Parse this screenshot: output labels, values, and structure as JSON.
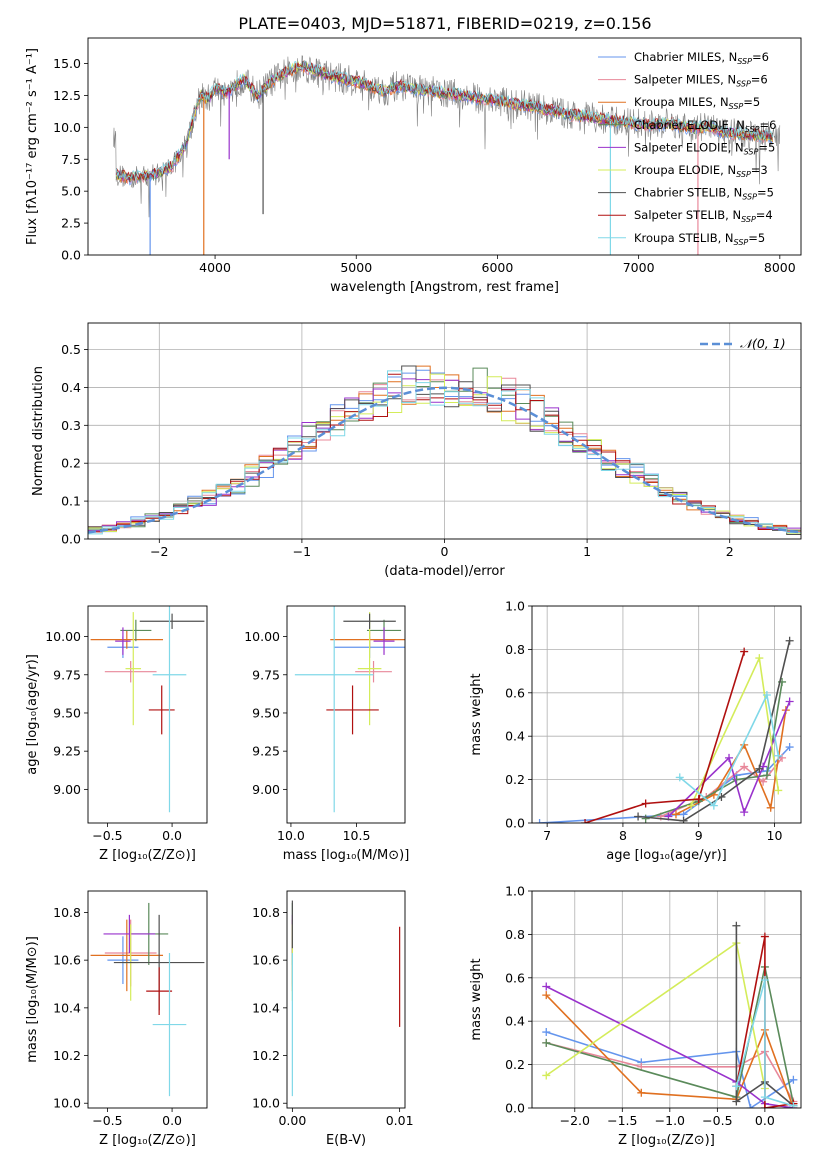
{
  "figure": {
    "title": "PLATE=0403, MJD=51871, FIBERID=0219, z=0.156"
  },
  "series_styles": [
    {
      "name": "Chabrier MILES",
      "nssp": "6",
      "color": "#6495ed"
    },
    {
      "name": "Salpeter MILES",
      "nssp": "6",
      "color": "#e8889a"
    },
    {
      "name": "Kroupa MILES",
      "nssp": "5",
      "color": "#e07020"
    },
    {
      "name": "Chabrier ELODIE",
      "nssp": "6",
      "color": "#5a8a5a"
    },
    {
      "name": "Salpeter ELODIE",
      "nssp": "5",
      "color": "#9932cc"
    },
    {
      "name": "Kroupa ELODIE",
      "nssp": "3",
      "color": "#d4ec5a"
    },
    {
      "name": "Chabrier STELIB",
      "nssp": "5",
      "color": "#505050"
    },
    {
      "name": "Salpeter STELIB",
      "nssp": "4",
      "color": "#b01010"
    },
    {
      "name": "Kroupa STELIB",
      "nssp": "5",
      "color": "#80d8e8"
    }
  ],
  "chart_data": [
    {
      "id": "spectrum",
      "type": "line",
      "xlabel": "wavelength [Angstrom, rest frame]",
      "ylabel": "Flux [fλ10⁻¹⁷ erg cm⁻² s⁻¹ A⁻¹]",
      "xlim": [
        3100,
        8150
      ],
      "ylim": [
        0,
        17
      ],
      "xticks": [
        4000,
        5000,
        6000,
        7000,
        8000
      ],
      "yticks": [
        0.0,
        2.5,
        5.0,
        7.5,
        10.0,
        12.5,
        15.0
      ],
      "legend": "top-right",
      "data_series": {
        "name": "data",
        "color": "#808080"
      },
      "continuum_points": [
        [
          3300,
          6.3
        ],
        [
          3400,
          6.0
        ],
        [
          3500,
          6.2
        ],
        [
          3600,
          6.4
        ],
        [
          3700,
          7.0
        ],
        [
          3800,
          8.8
        ],
        [
          3850,
          11.0
        ],
        [
          3900,
          12.5
        ],
        [
          3950,
          12.2
        ],
        [
          4000,
          13.0
        ],
        [
          4100,
          12.8
        ],
        [
          4200,
          13.8
        ],
        [
          4300,
          12.5
        ],
        [
          4400,
          13.6
        ],
        [
          4500,
          14.3
        ],
        [
          4600,
          14.8
        ],
        [
          4700,
          14.5
        ],
        [
          4800,
          14.1
        ],
        [
          4900,
          13.8
        ],
        [
          5000,
          13.6
        ],
        [
          5100,
          13.2
        ],
        [
          5200,
          12.8
        ],
        [
          5300,
          13.3
        ],
        [
          5400,
          13.0
        ],
        [
          5500,
          12.9
        ],
        [
          5600,
          12.7
        ],
        [
          5700,
          12.6
        ],
        [
          5800,
          12.4
        ],
        [
          5900,
          12.2
        ],
        [
          6000,
          12.1
        ],
        [
          6100,
          11.9
        ],
        [
          6200,
          11.7
        ],
        [
          6300,
          11.5
        ],
        [
          6400,
          11.3
        ],
        [
          6500,
          11.0
        ],
        [
          6600,
          10.9
        ],
        [
          6700,
          10.7
        ],
        [
          6800,
          10.5
        ],
        [
          6900,
          10.4
        ],
        [
          7000,
          10.3
        ],
        [
          7100,
          10.2
        ],
        [
          7200,
          10.3
        ],
        [
          7300,
          10.1
        ],
        [
          7400,
          9.9
        ],
        [
          7500,
          10.1
        ],
        [
          7600,
          9.6
        ],
        [
          7700,
          9.5
        ],
        [
          7800,
          9.4
        ],
        [
          7900,
          9.3
        ],
        [
          8000,
          9.2
        ]
      ],
      "absorption_features": [
        {
          "x": 3540,
          "y": 0.0
        },
        {
          "x": 3920,
          "y": 0.0
        },
        {
          "x": 4100,
          "y": 7.5
        },
        {
          "x": 4340,
          "y": 3.2
        },
        {
          "x": 6800,
          "y": 0.0
        },
        {
          "x": 7420,
          "y": 0.0
        }
      ]
    },
    {
      "id": "residuals",
      "type": "step",
      "xlabel": "(data-model)/error",
      "ylabel": "Normed distribution",
      "xlim": [
        -2.5,
        2.5
      ],
      "ylim": [
        0,
        0.57
      ],
      "xticks": [
        -2,
        -1,
        0,
        1,
        2
      ],
      "yticks": [
        0.0,
        0.1,
        0.2,
        0.3,
        0.4,
        0.5
      ],
      "grid": true,
      "legend": "top-right",
      "reference_curve": {
        "name": "𝒩(0, 1)",
        "color": "#5b8fd6",
        "mean": 0,
        "sigma": 1
      },
      "bin_edges_start": -2.5,
      "bin_width": 0.1
    },
    {
      "id": "age_vs_Z",
      "type": "errorbar",
      "xlabel": "Z [log₁₀(Z/Z⊙)]",
      "ylabel": "age  [log₁₀(age/yr)]",
      "xlim": [
        -0.65,
        0.27
      ],
      "ylim": [
        8.78,
        10.2
      ],
      "xticks": [
        -0.5,
        0.0
      ],
      "yticks": [
        9.0,
        9.25,
        9.5,
        9.75,
        10.0
      ],
      "points": [
        {
          "x": -0.38,
          "xerr": 0.12,
          "y": 9.93,
          "yerr": 0.07
        },
        {
          "x": -0.32,
          "xerr": 0.2,
          "y": 9.77,
          "yerr": 0.07
        },
        {
          "x": -0.35,
          "xerr": 0.28,
          "y": 9.98,
          "yerr": 0.06
        },
        {
          "x": -0.28,
          "xerr": 0.12,
          "y": 10.04,
          "yerr": 0.07
        },
        {
          "x": -0.38,
          "xerr": 0.06,
          "y": 9.97,
          "yerr": 0.09
        },
        {
          "x": -0.3,
          "xerr": 0.06,
          "y": 9.79,
          "yerr": 0.37
        },
        {
          "x": 0.0,
          "xerr": 0.25,
          "y": 10.1,
          "yerr": 0.05
        },
        {
          "x": -0.08,
          "xerr": 0.1,
          "y": 9.52,
          "yerr": 0.16
        },
        {
          "x": -0.02,
          "xerr": 0.13,
          "y": 9.75,
          "yerr": 0.9
        }
      ]
    },
    {
      "id": "age_vs_mass",
      "type": "errorbar",
      "xlabel": "mass [log₁₀(M/M⊙)]",
      "ylabel": "",
      "xlim": [
        9.97,
        10.87
      ],
      "ylim": [
        8.78,
        10.2
      ],
      "xticks": [
        10.0,
        10.5
      ],
      "yticks": [
        9.0,
        9.25,
        9.5,
        9.75,
        10.0
      ],
      "points": [
        {
          "x": 10.6,
          "xerr": 0.27,
          "y": 9.93,
          "yerr": 0.07
        },
        {
          "x": 10.63,
          "xerr": 0.14,
          "y": 9.77,
          "yerr": 0.07
        },
        {
          "x": 10.6,
          "xerr": 0.3,
          "y": 9.98,
          "yerr": 0.06
        },
        {
          "x": 10.71,
          "xerr": 0.13,
          "y": 10.04,
          "yerr": 0.07
        },
        {
          "x": 10.71,
          "xerr": 0.08,
          "y": 9.97,
          "yerr": 0.09
        },
        {
          "x": 10.6,
          "xerr": 0.09,
          "y": 9.79,
          "yerr": 0.37
        },
        {
          "x": 10.6,
          "xerr": 0.2,
          "y": 10.1,
          "yerr": 0.05
        },
        {
          "x": 10.47,
          "xerr": 0.2,
          "y": 9.52,
          "yerr": 0.16
        },
        {
          "x": 10.33,
          "xerr": 0.3,
          "y": 9.75,
          "yerr": 0.9
        }
      ]
    },
    {
      "id": "weight_vs_age",
      "type": "line",
      "xlabel": "age  [log₁₀(age/yr)]",
      "ylabel": "mass weight",
      "xlim": [
        6.8,
        10.35
      ],
      "ylim": [
        0,
        1.0
      ],
      "xticks": [
        7,
        8,
        9,
        10
      ],
      "yticks": [
        0.0,
        0.2,
        0.4,
        0.6,
        0.8,
        1.0
      ],
      "grid": true,
      "series": [
        {
          "points": [
            [
              6.9,
              0.0
            ],
            [
              8.8,
              0.04
            ],
            [
              9.5,
              0.22
            ],
            [
              9.9,
              0.24
            ],
            [
              10.2,
              0.35
            ]
          ]
        },
        {
          "points": [
            [
              8.5,
              0.03
            ],
            [
              9.1,
              0.12
            ],
            [
              9.6,
              0.26
            ],
            [
              9.85,
              0.19
            ],
            [
              10.1,
              0.3
            ]
          ]
        },
        {
          "points": [
            [
              8.7,
              0.04
            ],
            [
              9.2,
              0.13
            ],
            [
              9.6,
              0.36
            ],
            [
              9.95,
              0.07
            ],
            [
              10.15,
              0.52
            ]
          ]
        },
        {
          "points": [
            [
              8.3,
              0.02
            ],
            [
              9.0,
              0.1
            ],
            [
              9.5,
              0.2
            ],
            [
              9.9,
              0.22
            ],
            [
              10.1,
              0.65
            ]
          ]
        },
        {
          "points": [
            [
              8.6,
              0.03
            ],
            [
              9.4,
              0.3
            ],
            [
              9.6,
              0.05
            ],
            [
              9.85,
              0.26
            ],
            [
              10.2,
              0.56
            ]
          ]
        },
        {
          "points": [
            [
              8.9,
              0.08
            ],
            [
              9.8,
              0.76
            ],
            [
              10.05,
              0.15
            ]
          ]
        },
        {
          "points": [
            [
              8.2,
              0.03
            ],
            [
              8.8,
              0.01
            ],
            [
              9.3,
              0.12
            ],
            [
              9.8,
              0.25
            ],
            [
              10.2,
              0.84
            ]
          ]
        },
        {
          "points": [
            [
              7.5,
              0.0
            ],
            [
              8.3,
              0.09
            ],
            [
              9.0,
              0.11
            ],
            [
              9.6,
              0.79
            ]
          ]
        },
        {
          "points": [
            [
              8.75,
              0.21
            ],
            [
              9.2,
              0.08
            ],
            [
              9.9,
              0.59
            ],
            [
              10.05,
              0.31
            ]
          ]
        }
      ]
    },
    {
      "id": "mass_vs_Z",
      "type": "errorbar",
      "xlabel": "Z [log₁₀(Z/Z⊙)]",
      "ylabel": "mass [log₁₀(M/M⊙)]",
      "xlim": [
        -0.65,
        0.27
      ],
      "ylim": [
        9.98,
        10.89
      ],
      "xticks": [
        -0.5,
        0.0
      ],
      "yticks": [
        10.0,
        10.2,
        10.4,
        10.6,
        10.8
      ],
      "points": [
        {
          "x": -0.38,
          "xerr": 0.12,
          "y": 10.6,
          "yerr": 0.1
        },
        {
          "x": -0.32,
          "xerr": 0.2,
          "y": 10.63,
          "yerr": 0.14
        },
        {
          "x": -0.35,
          "xerr": 0.28,
          "y": 10.62,
          "yerr": 0.15
        },
        {
          "x": -0.18,
          "xerr": 0.15,
          "y": 10.71,
          "yerr": 0.13
        },
        {
          "x": -0.33,
          "xerr": 0.2,
          "y": 10.71,
          "yerr": 0.08
        },
        {
          "x": -0.32,
          "xerr": 0.06,
          "y": 10.59,
          "yerr": 0.16
        },
        {
          "x": -0.1,
          "xerr": 0.35,
          "y": 10.59,
          "yerr": 0.2
        },
        {
          "x": -0.1,
          "xerr": 0.1,
          "y": 10.47,
          "yerr": 0.1
        },
        {
          "x": -0.02,
          "xerr": 0.13,
          "y": 10.33,
          "yerr": 0.3
        }
      ]
    },
    {
      "id": "mass_vs_ebv",
      "type": "errorbar",
      "xlabel": "E(B-V)",
      "ylabel": "",
      "xlim": [
        -0.0005,
        0.0105
      ],
      "ylim": [
        9.98,
        10.89
      ],
      "xticks": [
        0.0,
        0.01
      ],
      "xtick_labels": [
        "0.00",
        "0.01"
      ],
      "yticks": [
        10.0,
        10.2,
        10.4,
        10.6,
        10.8
      ],
      "points": [
        {
          "x": 0.0,
          "xerr": 0,
          "y": 10.6,
          "yerr": 0.1
        },
        {
          "x": 0.0,
          "xerr": 0,
          "y": 10.63,
          "yerr": 0.14
        },
        {
          "x": 0.0,
          "xerr": 0,
          "y": 10.62,
          "yerr": 0.15
        },
        {
          "x": 0.0,
          "xerr": 0,
          "y": 10.71,
          "yerr": 0.13
        },
        {
          "x": 0.0,
          "xerr": 0,
          "y": 10.71,
          "yerr": 0.08
        },
        {
          "x": 0.0,
          "xerr": 0,
          "y": 10.59,
          "yerr": 0.16
        },
        {
          "x": 0.0,
          "xerr": 0,
          "y": 10.75,
          "yerr": 0.1
        },
        {
          "x": 0.01,
          "xerr": 0,
          "y": 10.53,
          "yerr": 0.21
        },
        {
          "x": 0.0,
          "xerr": 0,
          "y": 10.33,
          "yerr": 0.3
        }
      ]
    },
    {
      "id": "weight_vs_Z",
      "type": "line",
      "xlabel": "Z [log₁₀(Z/Z⊙)]",
      "ylabel": "mass weight",
      "xlim": [
        -2.45,
        0.38
      ],
      "ylim": [
        0,
        1.0
      ],
      "xticks": [
        -2.0,
        -1.5,
        -1.0,
        -0.5,
        0.0
      ],
      "yticks": [
        0.0,
        0.2,
        0.4,
        0.6,
        0.8,
        1.0
      ],
      "grid": true,
      "series": [
        {
          "points": [
            [
              -2.3,
              0.35
            ],
            [
              -1.3,
              0.21
            ],
            [
              -0.3,
              0.26
            ],
            [
              -0.15,
              0.0
            ],
            [
              0.3,
              0.13
            ]
          ]
        },
        {
          "points": [
            [
              -2.3,
              0.3
            ],
            [
              -1.3,
              0.19
            ],
            [
              -0.3,
              0.19
            ],
            [
              0.0,
              0.26
            ],
            [
              0.3,
              0.03
            ]
          ]
        },
        {
          "points": [
            [
              -2.3,
              0.52
            ],
            [
              -1.3,
              0.07
            ],
            [
              -0.3,
              0.04
            ],
            [
              0.0,
              0.36
            ],
            [
              0.3,
              0.0
            ]
          ]
        },
        {
          "points": [
            [
              -2.3,
              0.3
            ],
            [
              -0.3,
              0.05
            ],
            [
              0.0,
              0.65
            ],
            [
              0.3,
              0.02
            ]
          ]
        },
        {
          "points": [
            [
              -2.3,
              0.56
            ],
            [
              -0.3,
              0.12
            ],
            [
              0.0,
              0.02
            ],
            [
              0.3,
              0.0
            ]
          ]
        },
        {
          "points": [
            [
              -2.3,
              0.15
            ],
            [
              -0.3,
              0.76
            ],
            [
              0.0,
              0.09
            ]
          ]
        },
        {
          "points": [
            [
              -0.3,
              0.84
            ],
            [
              -0.3,
              0.03
            ],
            [
              0.0,
              0.12
            ],
            [
              0.3,
              0.01
            ]
          ]
        },
        {
          "points": [
            [
              -0.3,
              0.1
            ],
            [
              0.0,
              0.79
            ],
            [
              0.0,
              0.0
            ],
            [
              0.3,
              0.02
            ]
          ]
        },
        {
          "points": [
            [
              -0.3,
              0.1
            ],
            [
              0.0,
              0.59
            ],
            [
              0.0,
              0.05
            ],
            [
              0.3,
              0.01
            ]
          ]
        }
      ]
    }
  ]
}
